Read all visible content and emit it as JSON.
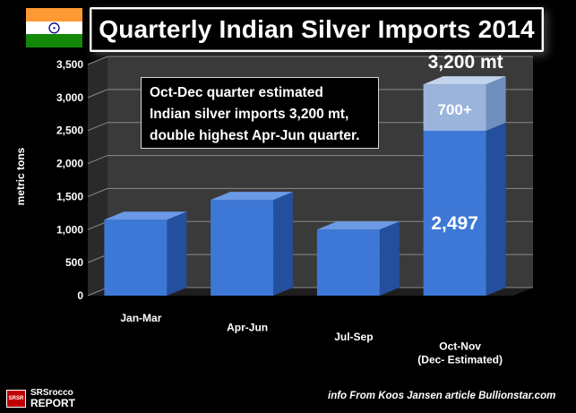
{
  "title": "Quarterly Indian Silver Imports 2014",
  "annotation": {
    "lines": [
      "Oct-Dec quarter estimated",
      "Indian silver imports 3,200 mt,",
      "double highest Apr-Jun quarter."
    ]
  },
  "credit": "info From Koos Jansen article Bullionstar.com",
  "logo": {
    "mark": "SRSR",
    "line1": "SRSrocco",
    "line2": "REPORT"
  },
  "flag": {
    "colors": [
      "#ff9933",
      "#ffffff",
      "#138808"
    ],
    "chakra_color": "#000080"
  },
  "colors": {
    "bar": "#3d78d6",
    "bar_top": "#6a9ae6",
    "bar_side": "#244f9c",
    "estimate": "#9ab4dc",
    "estimate_top": "#c2d3ec",
    "estimate_side": "#6f8fbf"
  },
  "chart_data": {
    "type": "bar",
    "stacked": true,
    "three_d": true,
    "categories": [
      "Jan-Mar",
      "Apr-Jun",
      "Jul-Sep",
      "Oct-Nov\n(Dec- Estimated)"
    ],
    "series": [
      {
        "values": [
          1150,
          1450,
          1000,
          2497
        ]
      },
      {
        "values": [
          0,
          0,
          0,
          703
        ]
      }
    ],
    "data_labels": {
      "base": [
        null,
        null,
        null,
        "2,497"
      ],
      "top": [
        null,
        null,
        null,
        "700+"
      ]
    },
    "total_label": "3,200 mt",
    "ylabel": "metric tons",
    "ylim": [
      0,
      3500
    ],
    "yticks": [
      0,
      500,
      1000,
      1500,
      2000,
      2500,
      3000,
      3500
    ],
    "ytick_labels": [
      "0",
      "500",
      "1,000",
      "1,500",
      "2,000",
      "2,500",
      "3,000",
      "3,500"
    ],
    "grid": true
  }
}
